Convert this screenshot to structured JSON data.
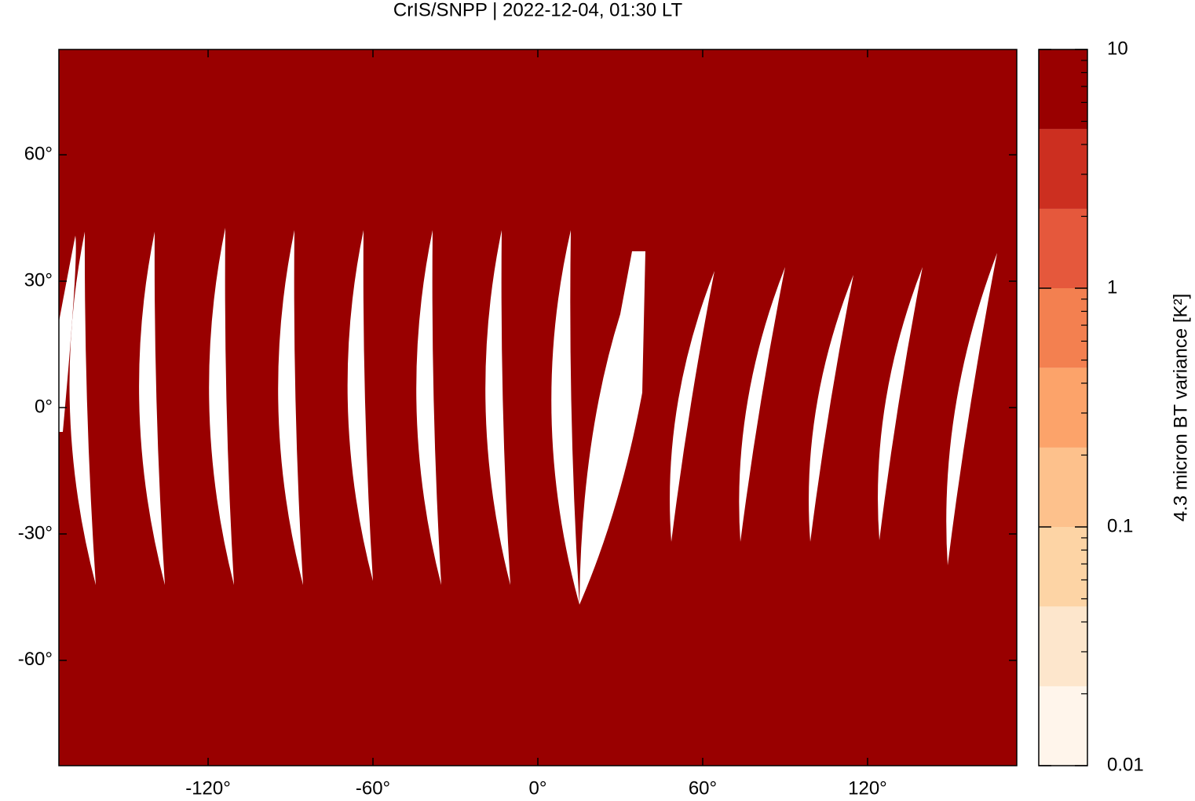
{
  "chart_data": {
    "type": "map",
    "title": "CrIS/SNPP | 2022-12-04, 01:30 LT",
    "xlim": [
      -174.3,
      174.3
    ],
    "ylim": [
      -85,
      85
    ],
    "xticks": [
      {
        "value": -120,
        "label": "-120°"
      },
      {
        "value": -60,
        "label": "-60°"
      },
      {
        "value": 0,
        "label": "0°"
      },
      {
        "value": 60,
        "label": "60°"
      },
      {
        "value": 120,
        "label": "120°"
      }
    ],
    "yticks": [
      {
        "value": -60,
        "label": "-60°"
      },
      {
        "value": -30,
        "label": "-30°"
      },
      {
        "value": 0,
        "label": "0°"
      },
      {
        "value": 30,
        "label": "30°"
      },
      {
        "value": 60,
        "label": "60°"
      }
    ],
    "field_color": "#990000",
    "colorbar": {
      "label": "4.3 micron BT variance [K²]",
      "scale": "log",
      "lim": [
        0.01,
        10
      ],
      "levels": [
        0.01,
        0.0215,
        0.0464,
        0.1,
        0.215,
        0.464,
        1,
        2.15,
        4.64,
        10
      ],
      "colors": [
        "#fff5eb",
        "#fde6cc",
        "#fdd4a5",
        "#fdc18c",
        "#fca36a",
        "#f38050",
        "#e5583c",
        "#cc2f20",
        "#990000"
      ],
      "ticks": [
        {
          "value": 0.01,
          "label": "0.01"
        },
        {
          "value": 0.1,
          "label": "0.1"
        },
        1,
        10
      ],
      "minor_ticks": [
        0.02,
        0.03,
        0.04,
        0.05,
        0.06,
        0.07,
        0.08,
        0.09,
        0.2,
        0.3,
        0.4,
        0.5,
        0.6,
        0.7,
        0.8,
        0.9,
        2,
        3,
        4,
        5,
        6,
        7,
        8,
        9
      ]
    }
  }
}
